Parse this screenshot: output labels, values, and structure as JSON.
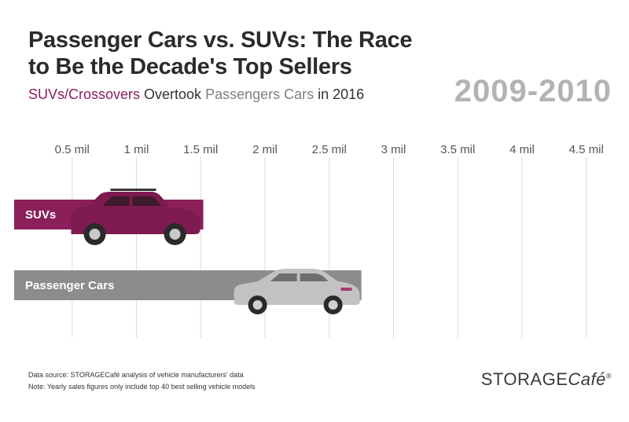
{
  "header": {
    "title_line1": "Passenger Cars vs. SUVs: The Race",
    "title_line2": "to Be the Decade's Top Sellers",
    "subtitle_suv": "SUVs/Crossovers",
    "subtitle_mid": " Overtook ",
    "subtitle_car": "Passengers Cars",
    "subtitle_end": " in 2016",
    "period": "2009-2010"
  },
  "colors": {
    "suv": "#8b1f5a",
    "car": "#8c8c8c",
    "grid": "#dddddd",
    "period": "#b3b3b3"
  },
  "chart_data": {
    "type": "bar",
    "orientation": "horizontal",
    "xlim": [
      0,
      4.6
    ],
    "ticks": [
      0.5,
      1,
      1.5,
      2,
      2.5,
      3,
      3.5,
      4,
      4.5
    ],
    "tick_labels": [
      "0.5 mil",
      "1 mil",
      "1.5 mil",
      "2 mil",
      "2.5 mil",
      "3 mil",
      "3.5 mil",
      "4 mil",
      "4.5 mil"
    ],
    "categories": [
      "SUVs",
      "Passenger Cars"
    ],
    "values": [
      1.52,
      2.75
    ],
    "unit": "mil",
    "grid": true
  },
  "footer": {
    "source": "Data source: STORAGECafé analysis of vehicle manufacturers' data",
    "note": "Note: Yearly sales figures only include top 40 best selling vehicle models",
    "logo_main": "STORAGE",
    "logo_cafe": "Café",
    "logo_mark": "®"
  }
}
